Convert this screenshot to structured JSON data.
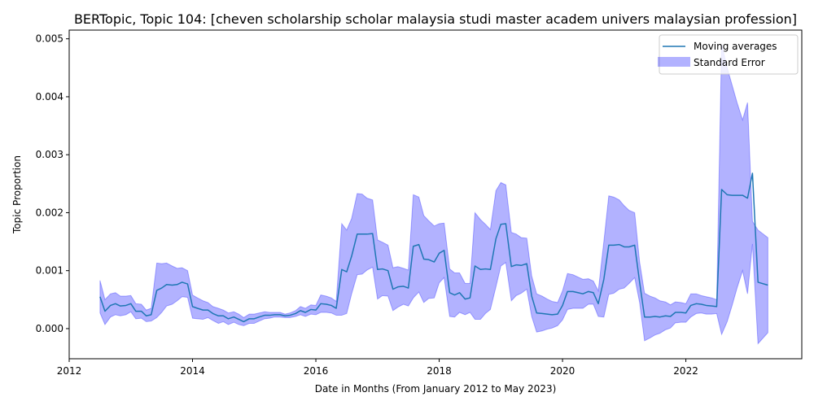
{
  "chart_data": {
    "type": "area",
    "title": "BERTopic, Topic 104: [cheven scholarship scholar malaysia studi master academ univers malaysian profession]",
    "xlabel": "Date in Months (From January 2012 to May 2023)",
    "ylabel": "Topic Proportion",
    "xlim": [
      2012.0,
      2023.88
    ],
    "ylim": [
      -0.00052,
      0.00515
    ],
    "x_ticks": [
      2012,
      2014,
      2016,
      2018,
      2020,
      2022
    ],
    "x_tick_labels": [
      "2012",
      "2014",
      "2016",
      "2018",
      "2020",
      "2022"
    ],
    "y_ticks": [
      0,
      0.001,
      0.002,
      0.003,
      0.004,
      0.005
    ],
    "y_tick_labels": [
      "0.000",
      "0.001",
      "0.002",
      "0.003",
      "0.004",
      "0.005"
    ],
    "grid": false,
    "legend_position": "top-right",
    "colors": {
      "line": "#1f77b4",
      "band": "#0000ff",
      "band_opacity": 0.3
    },
    "series": [
      {
        "name": "Moving averages",
        "x": [
          2012.5,
          2012.58,
          2012.67,
          2012.75,
          2012.83,
          2012.92,
          2013.0,
          2013.08,
          2013.17,
          2013.25,
          2013.33,
          2013.42,
          2013.5,
          2013.58,
          2013.67,
          2013.75,
          2013.83,
          2013.92,
          2014.0,
          2014.08,
          2014.17,
          2014.25,
          2014.33,
          2014.42,
          2014.5,
          2014.58,
          2014.67,
          2014.75,
          2014.83,
          2014.92,
          2015.0,
          2015.08,
          2015.17,
          2015.25,
          2015.33,
          2015.42,
          2015.5,
          2015.58,
          2015.67,
          2015.75,
          2015.83,
          2015.92,
          2016.0,
          2016.08,
          2016.17,
          2016.25,
          2016.33,
          2016.42,
          2016.5,
          2016.58,
          2016.67,
          2016.75,
          2016.83,
          2016.92,
          2017.0,
          2017.08,
          2017.17,
          2017.25,
          2017.33,
          2017.42,
          2017.5,
          2017.58,
          2017.67,
          2017.75,
          2017.83,
          2017.92,
          2018.0,
          2018.08,
          2018.17,
          2018.25,
          2018.33,
          2018.42,
          2018.5,
          2018.58,
          2018.67,
          2018.75,
          2018.83,
          2018.92,
          2019.0,
          2019.08,
          2019.17,
          2019.25,
          2019.33,
          2019.42,
          2019.5,
          2019.58,
          2019.67,
          2019.75,
          2019.83,
          2019.92,
          2020.0,
          2020.08,
          2020.17,
          2020.25,
          2020.33,
          2020.42,
          2020.5,
          2020.58,
          2020.67,
          2020.75,
          2020.83,
          2020.92,
          2021.0,
          2021.08,
          2021.17,
          2021.25,
          2021.33,
          2021.42,
          2021.5,
          2021.58,
          2021.67,
          2021.75,
          2021.83,
          2021.92,
          2022.0,
          2022.08,
          2022.17,
          2022.25,
          2022.33,
          2022.42,
          2022.5,
          2022.58,
          2022.67,
          2022.75,
          2022.83,
          2022.92,
          2023.0,
          2023.08,
          2023.17,
          2023.33
        ],
        "values": [
          0.00055,
          0.0003,
          0.0004,
          0.00043,
          0.00039,
          0.0004,
          0.00043,
          0.0003,
          0.0003,
          0.00022,
          0.00024,
          0.00066,
          0.0007,
          0.00076,
          0.00075,
          0.00076,
          0.0008,
          0.00077,
          0.00038,
          0.00035,
          0.00032,
          0.00032,
          0.00026,
          0.00022,
          0.00022,
          0.00017,
          0.0002,
          0.00016,
          0.00012,
          0.00017,
          0.00017,
          0.0002,
          0.00023,
          0.00023,
          0.00024,
          0.00024,
          0.00022,
          0.00023,
          0.00026,
          0.00031,
          0.00028,
          0.00033,
          0.00032,
          0.00043,
          0.00042,
          0.0004,
          0.00035,
          0.00102,
          0.00098,
          0.00125,
          0.00163,
          0.00163,
          0.00163,
          0.00164,
          0.00102,
          0.00103,
          0.001,
          0.00068,
          0.00072,
          0.00073,
          0.0007,
          0.00142,
          0.00145,
          0.0012,
          0.00119,
          0.00115,
          0.0013,
          0.00135,
          0.00062,
          0.00058,
          0.00062,
          0.00051,
          0.00053,
          0.00108,
          0.00102,
          0.00103,
          0.00102,
          0.00155,
          0.0018,
          0.00181,
          0.00107,
          0.0011,
          0.00109,
          0.00112,
          0.00056,
          0.00027,
          0.00026,
          0.00025,
          0.00024,
          0.00025,
          0.0004,
          0.00064,
          0.00064,
          0.00062,
          0.0006,
          0.00064,
          0.00062,
          0.00043,
          0.00085,
          0.00144,
          0.00144,
          0.00145,
          0.00141,
          0.00141,
          0.00144,
          0.0008,
          0.0002,
          0.0002,
          0.00021,
          0.0002,
          0.00022,
          0.00021,
          0.00028,
          0.00028,
          0.00027,
          0.0004,
          0.00043,
          0.00042,
          0.0004,
          0.00039,
          0.00038,
          0.0024,
          0.00231,
          0.0023,
          0.0023,
          0.0023,
          0.00225,
          0.00268,
          0.0008,
          0.00075
        ]
      },
      {
        "name": "Standard Error",
        "x": [
          2012.5,
          2012.58,
          2012.67,
          2012.75,
          2012.83,
          2012.92,
          2013.0,
          2013.08,
          2013.17,
          2013.25,
          2013.33,
          2013.42,
          2013.5,
          2013.58,
          2013.67,
          2013.75,
          2013.83,
          2013.92,
          2014.0,
          2014.08,
          2014.17,
          2014.25,
          2014.33,
          2014.42,
          2014.5,
          2014.58,
          2014.67,
          2014.75,
          2014.83,
          2014.92,
          2015.0,
          2015.08,
          2015.17,
          2015.25,
          2015.33,
          2015.42,
          2015.5,
          2015.58,
          2015.67,
          2015.75,
          2015.83,
          2015.92,
          2016.0,
          2016.08,
          2016.17,
          2016.25,
          2016.33,
          2016.42,
          2016.5,
          2016.58,
          2016.67,
          2016.75,
          2016.83,
          2016.92,
          2017.0,
          2017.08,
          2017.17,
          2017.25,
          2017.33,
          2017.42,
          2017.5,
          2017.58,
          2017.67,
          2017.75,
          2017.83,
          2017.92,
          2018.0,
          2018.08,
          2018.17,
          2018.25,
          2018.33,
          2018.42,
          2018.5,
          2018.58,
          2018.67,
          2018.75,
          2018.83,
          2018.92,
          2019.0,
          2019.08,
          2019.17,
          2019.25,
          2019.33,
          2019.42,
          2019.5,
          2019.58,
          2019.67,
          2019.75,
          2019.83,
          2019.92,
          2020.0,
          2020.08,
          2020.17,
          2020.25,
          2020.33,
          2020.42,
          2020.5,
          2020.58,
          2020.67,
          2020.75,
          2020.83,
          2020.92,
          2021.0,
          2021.08,
          2021.17,
          2021.25,
          2021.33,
          2021.42,
          2021.5,
          2021.58,
          2021.67,
          2021.75,
          2021.83,
          2021.92,
          2022.0,
          2022.08,
          2022.17,
          2022.25,
          2022.33,
          2022.42,
          2022.5,
          2022.58,
          2022.67,
          2022.75,
          2022.83,
          2022.92,
          2023.0,
          2023.08,
          2023.17,
          2023.33
        ],
        "upper": [
          0.00083,
          0.0005,
          0.0006,
          0.00062,
          0.00056,
          0.00056,
          0.00057,
          0.00043,
          0.00042,
          0.00032,
          0.00035,
          0.00113,
          0.00112,
          0.00113,
          0.00108,
          0.00104,
          0.00105,
          0.001,
          0.00058,
          0.00053,
          0.00048,
          0.00045,
          0.00038,
          0.00035,
          0.00032,
          0.00027,
          0.00029,
          0.00025,
          0.00019,
          0.00025,
          0.00025,
          0.00027,
          0.00029,
          0.00028,
          0.00028,
          0.00028,
          0.00025,
          0.00027,
          0.00031,
          0.00038,
          0.00035,
          0.00041,
          0.0004,
          0.00058,
          0.00056,
          0.00053,
          0.00047,
          0.00181,
          0.0017,
          0.0019,
          0.00233,
          0.00232,
          0.00225,
          0.00222,
          0.00153,
          0.00149,
          0.00144,
          0.00105,
          0.00107,
          0.00104,
          0.00101,
          0.00231,
          0.00227,
          0.00195,
          0.00186,
          0.00177,
          0.00181,
          0.00182,
          0.00103,
          0.00096,
          0.00096,
          0.00078,
          0.00078,
          0.002,
          0.00188,
          0.0018,
          0.00171,
          0.00238,
          0.00252,
          0.00248,
          0.00166,
          0.00163,
          0.00157,
          0.00156,
          0.00091,
          0.0006,
          0.00056,
          0.00051,
          0.00047,
          0.00045,
          0.00065,
          0.00095,
          0.00093,
          0.00089,
          0.00085,
          0.00086,
          0.00082,
          0.00065,
          0.0015,
          0.00229,
          0.00227,
          0.00222,
          0.00212,
          0.00204,
          0.002,
          0.00115,
          0.00061,
          0.00056,
          0.00053,
          0.00048,
          0.00046,
          0.00041,
          0.00046,
          0.00045,
          0.00043,
          0.0006,
          0.0006,
          0.00057,
          0.00055,
          0.00053,
          0.0005,
          0.0049,
          0.0045,
          0.0042,
          0.0039,
          0.0036,
          0.0039,
          0.00185,
          0.0017,
          0.00157
        ],
        "lower": [
          0.00027,
          7e-05,
          0.0002,
          0.00024,
          0.00022,
          0.00024,
          0.00029,
          0.00017,
          0.00018,
          0.00012,
          0.00013,
          0.00019,
          0.00028,
          0.00039,
          0.00042,
          0.00048,
          0.00055,
          0.00054,
          0.00018,
          0.00017,
          0.00016,
          0.00019,
          0.00014,
          9e-05,
          0.00012,
          7e-05,
          0.00011,
          7e-05,
          5e-05,
          9e-05,
          9e-05,
          0.00013,
          0.00017,
          0.00018,
          0.0002,
          0.0002,
          0.00019,
          0.00019,
          0.00021,
          0.00024,
          0.00021,
          0.00025,
          0.00024,
          0.00028,
          0.00028,
          0.00027,
          0.00023,
          0.00023,
          0.00026,
          0.0006,
          0.00093,
          0.00094,
          0.00101,
          0.00106,
          0.00051,
          0.00057,
          0.00056,
          0.00031,
          0.00037,
          0.00042,
          0.00039,
          0.00053,
          0.00063,
          0.00045,
          0.00052,
          0.00053,
          0.00079,
          0.00088,
          0.00021,
          0.0002,
          0.00028,
          0.00024,
          0.00028,
          0.00016,
          0.00016,
          0.00026,
          0.00033,
          0.00072,
          0.00108,
          0.00114,
          0.00048,
          0.00057,
          0.00061,
          0.00068,
          0.00021,
          -6e-05,
          -4e-05,
          -1e-05,
          1e-05,
          5e-05,
          0.00015,
          0.00033,
          0.00035,
          0.00035,
          0.00035,
          0.00042,
          0.00042,
          0.00021,
          0.0002,
          0.00059,
          0.00061,
          0.00068,
          0.0007,
          0.00078,
          0.00088,
          0.00045,
          -0.00021,
          -0.00016,
          -0.00011,
          -8e-05,
          -2e-05,
          1e-05,
          0.0001,
          0.00011,
          0.00011,
          0.0002,
          0.00026,
          0.00027,
          0.00025,
          0.00025,
          0.00026,
          -0.0001,
          0.00012,
          0.0004,
          0.0007,
          0.001,
          0.0006,
          0.00146,
          -0.00026,
          -7e-05
        ]
      }
    ]
  }
}
